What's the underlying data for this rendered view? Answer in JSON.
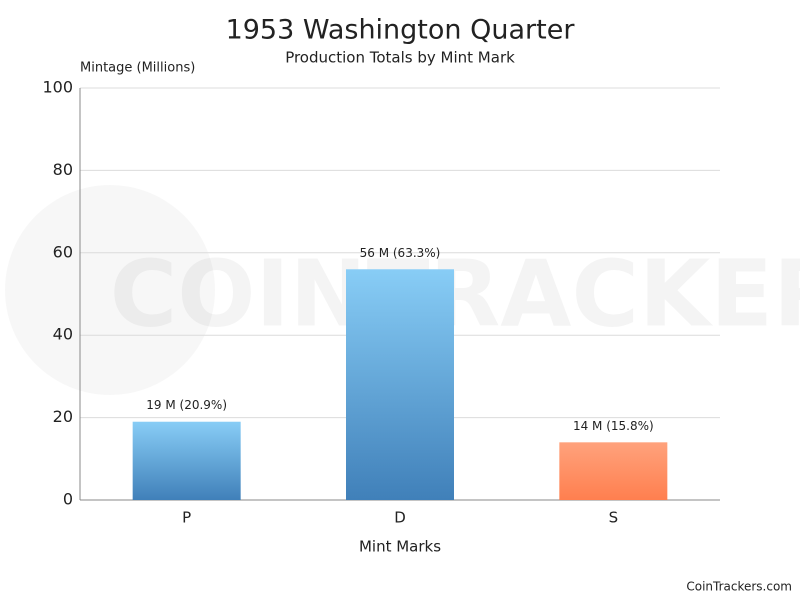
{
  "chart_data": {
    "type": "bar",
    "title": "1953 Washington Quarter",
    "subtitle": "Production Totals by Mint Mark",
    "y_label": "Mintage (Millions)",
    "x_label": "Mint Marks",
    "categories": [
      "P",
      "D",
      "S"
    ],
    "values": [
      19,
      56,
      14
    ],
    "value_labels": [
      "19 M (20.9%)",
      "56 M (63.3%)",
      "14 M (15.8%)"
    ],
    "colors": [
      [
        "#88cdf6",
        "#4080b9"
      ],
      [
        "#88cdf6",
        "#4080b9"
      ],
      [
        "#ffa27c",
        "#ff7f4f"
      ]
    ],
    "ylim": [
      0,
      100
    ],
    "yticks": [
      0,
      20,
      40,
      60,
      80,
      100
    ],
    "grid": true,
    "watermark": "COINTRACKERS",
    "credit": "CoinTrackers.com"
  }
}
